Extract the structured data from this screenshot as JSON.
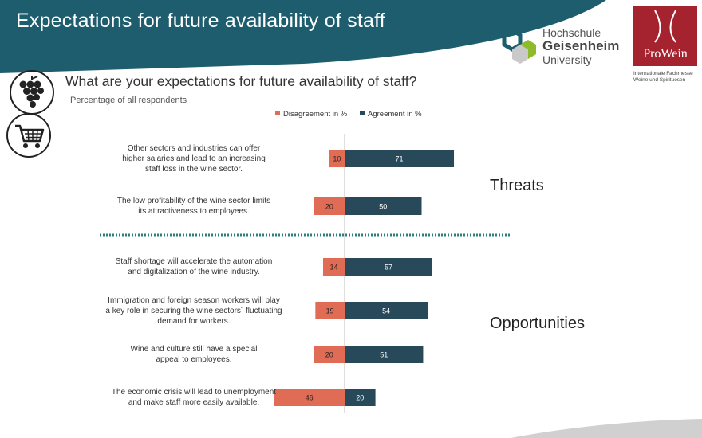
{
  "header": {
    "title": "Expectations for future availability of staff",
    "banner_color": "#1e5d6e"
  },
  "logos": {
    "university_lines": [
      "Hochschule",
      "Geisenheim",
      "University"
    ],
    "prowein_word": "ProWein",
    "prowein_subtitle_lines": [
      "Internationale Fachmesse",
      "Weine und Spirituosen"
    ],
    "prowein_color": "#a5232f"
  },
  "icons": [
    "grape-icon",
    "shopping-cart-icon"
  ],
  "question": "What are your expectations for future availability of staff?",
  "subtitle": "Percentage of all respondents",
  "sections": {
    "threats": "Threats",
    "opportunities": "Opportunities"
  },
  "chart_data": {
    "type": "bar",
    "orientation": "horizontal-diverging",
    "legend": {
      "disagreement": "Disagreement in %",
      "agreement": "Agreement in %",
      "placement": "top"
    },
    "colors": {
      "disagreement": "#e06c56",
      "agreement": "#27495a"
    },
    "categories": [
      [
        "Other sectors and industries can offer",
        "higher salaries and lead to an increasing",
        "staff loss in the wine sector."
      ],
      [
        "The low profitability of the wine sector limits",
        "its attractiveness to employees."
      ],
      [
        "Staff shortage will accelerate the automation",
        "and digitalization of the wine industry."
      ],
      [
        "Immigration and foreign season workers will play",
        "a key role in securing the wine sectors´ fluctuating",
        "demand for workers."
      ],
      [
        "Wine and culture still have a special",
        "appeal to employees."
      ],
      [
        "The economic crisis will lead to unemployment",
        "and make staff more easily available."
      ]
    ],
    "series": [
      {
        "name": "Disagreement in %",
        "values": [
          10,
          20,
          14,
          19,
          20,
          46
        ]
      },
      {
        "name": "Agreement in %",
        "values": [
          71,
          50,
          57,
          54,
          51,
          20
        ]
      }
    ],
    "grid": false
  }
}
